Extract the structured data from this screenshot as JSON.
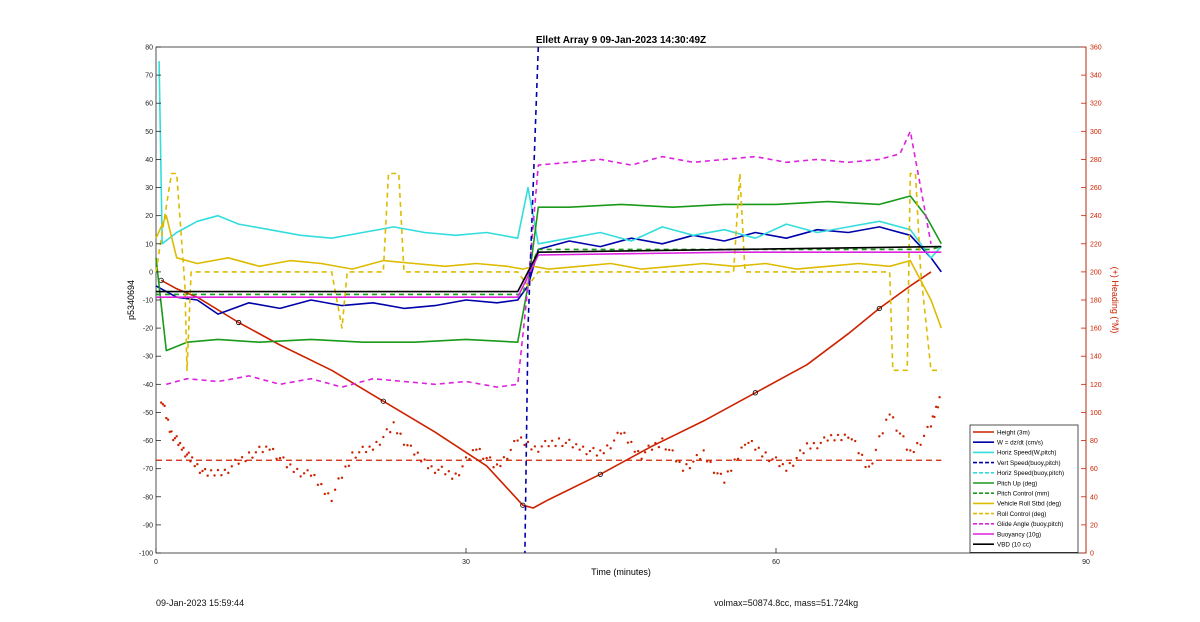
{
  "chart_data": {
    "type": "line",
    "title": "Ellett Array 9 09-Jan-2023 14:30:49Z",
    "xlabel": "Time (minutes)",
    "ylabel": "p5340694",
    "y2label": "(+) Heading (°M)",
    "xlim": [
      0,
      90
    ],
    "ylim": [
      -100,
      80
    ],
    "y2lim": [
      0,
      360
    ],
    "xticks": [
      0,
      30,
      60,
      90
    ],
    "yticks": [
      80,
      70,
      60,
      50,
      40,
      30,
      20,
      10,
      0,
      -10,
      -20,
      -30,
      -40,
      -50,
      -60,
      -70,
      -80,
      -90,
      -100
    ],
    "y2ticks": [
      360,
      340,
      320,
      300,
      280,
      260,
      240,
      220,
      200,
      180,
      160,
      140,
      120,
      100,
      80,
      60,
      40,
      20,
      0
    ],
    "grid": false,
    "legend_position": "bottom-right",
    "legend": [
      {
        "label": "Height (3m)",
        "color": "#cc2200",
        "style": "solid"
      },
      {
        "label": "W = dz/dt (cm/s)",
        "color": "#0000aa",
        "style": "solid"
      },
      {
        "label": "Horiz Speed(W,pitch)",
        "color": "#33dddd",
        "style": "solid"
      },
      {
        "label": "Vert Speed(buoy,pitch)",
        "color": "#0000aa",
        "style": "dashed"
      },
      {
        "label": "Horiz Speed(buoy,pitch)",
        "color": "#33dddd",
        "style": "dashed"
      },
      {
        "label": "Pitch Up (deg)",
        "color": "#1a9a1a",
        "style": "solid"
      },
      {
        "label": "Pitch Control (mm)",
        "color": "#1a9a1a",
        "style": "dashed"
      },
      {
        "label": "Vehicle Roll Stbd (deg)",
        "color": "#ddbb00",
        "style": "solid"
      },
      {
        "label": "Roll Control (deg)",
        "color": "#ddbb00",
        "style": "dashed"
      },
      {
        "label": "Glide Angle (buoy,pitch)",
        "color": "#dd22dd",
        "style": "dashed"
      },
      {
        "label": "Buoyancy (10g)",
        "color": "#dd22dd",
        "style": "solid"
      },
      {
        "label": "VBD (10 cc)",
        "color": "#000000",
        "style": "solid"
      }
    ],
    "series": [
      {
        "name": "Height (3m)",
        "color": "#cc2200",
        "x": [
          0.5,
          2,
          4,
          8,
          12,
          17,
          22,
          27,
          32,
          35.5,
          36.5,
          38,
          43,
          48,
          53,
          58,
          63,
          67,
          70,
          73,
          75
        ],
        "y": [
          -3,
          -6,
          -9,
          -18,
          -26,
          -35,
          -46,
          -57,
          -69,
          -83,
          -84,
          -81,
          -72,
          -62,
          -53,
          -43,
          -33,
          -22,
          -13,
          -5,
          0
        ]
      },
      {
        "name": "W = dz/dt (cm/s)",
        "color": "#0000aa",
        "x": [
          0,
          2,
          4,
          6,
          9,
          12,
          15,
          18,
          21,
          24,
          27,
          30,
          33,
          35,
          36,
          37,
          40,
          43,
          46,
          49,
          52,
          55,
          58,
          61,
          64,
          67,
          70,
          73,
          75,
          76
        ],
        "y": [
          -5,
          -9,
          -10,
          -15,
          -11,
          -13,
          -10,
          -12,
          -11,
          -13,
          -12,
          -10,
          -11,
          -10,
          -5,
          8,
          11,
          9,
          12,
          10,
          13,
          11,
          14,
          12,
          15,
          14,
          16,
          13,
          5,
          0
        ]
      },
      {
        "name": "Horiz Speed(W,pitch)",
        "color": "#33dddd",
        "x": [
          0.3,
          0.6,
          2,
          4,
          6,
          8,
          11,
          14,
          17,
          20,
          23,
          26,
          29,
          32,
          35,
          36,
          37,
          40,
          43,
          46,
          49,
          52,
          55,
          58,
          61,
          64,
          67,
          70,
          73,
          75,
          76
        ],
        "y": [
          75,
          10,
          14,
          18,
          20,
          17,
          15,
          13,
          12,
          14,
          16,
          14,
          13,
          14,
          12,
          30,
          10,
          12,
          14,
          11,
          16,
          13,
          15,
          12,
          17,
          14,
          16,
          18,
          15,
          5,
          9
        ]
      },
      {
        "name": "Pitch Up (deg)",
        "color": "#1a9a1a",
        "x": [
          0,
          1,
          3,
          6,
          10,
          15,
          20,
          25,
          30,
          35,
          36,
          37,
          40,
          45,
          50,
          55,
          60,
          65,
          70,
          73,
          74.5,
          76
        ],
        "y": [
          5,
          -28,
          -25,
          -24,
          -25,
          -24,
          -25,
          -25,
          -24,
          -25,
          -5,
          23,
          23,
          24,
          23,
          24,
          24,
          25,
          24,
          27,
          20,
          10
        ]
      },
      {
        "name": "Pitch Control (mm)",
        "color": "#1a9a1a",
        "x": [
          0,
          35.5,
          36,
          37,
          56,
          56.1,
          75,
          76
        ],
        "y": [
          -8,
          -8,
          0,
          8,
          8,
          8,
          8,
          9
        ]
      },
      {
        "name": "Vehicle Roll Stbd (deg)",
        "color": "#ddbb00",
        "x": [
          0,
          1,
          2,
          4,
          7,
          10,
          13,
          16,
          19,
          22,
          25,
          28,
          31,
          34,
          35.5,
          36.5,
          38,
          41,
          44,
          47,
          50,
          53,
          56,
          59,
          62,
          65,
          68,
          71,
          73,
          75,
          76
        ],
        "y": [
          12,
          20,
          5,
          3,
          5,
          2,
          4,
          3,
          1,
          4,
          3,
          2,
          3,
          2,
          1,
          2,
          1,
          2,
          3,
          1,
          2,
          3,
          2,
          3,
          1,
          2,
          3,
          2,
          4,
          -10,
          -20
        ]
      },
      {
        "name": "Roll Control (deg)",
        "color": "#ddbb00",
        "x": [
          0,
          1.5,
          2,
          2.8,
          3,
          3.4,
          4,
          17,
          18,
          18.5,
          22,
          22.5,
          23.5,
          24,
          35,
          36,
          37,
          55.9,
          56.5,
          57,
          71,
          71.3,
          72.7,
          73,
          73.5,
          74,
          75,
          76
        ],
        "y": [
          0,
          35,
          35,
          -5,
          -35,
          0,
          0,
          0,
          -20,
          0,
          0,
          35,
          35,
          0,
          0,
          -5,
          0,
          0,
          35,
          0,
          0,
          -35,
          -35,
          35,
          35,
          0,
          -35,
          -35
        ]
      },
      {
        "name": "Glide Angle (buoy,pitch)",
        "color": "#dd22dd",
        "x": [
          1,
          3,
          6,
          9,
          12,
          15,
          18,
          21,
          24,
          27,
          30,
          33,
          35,
          36,
          37,
          40,
          43,
          46,
          49,
          52,
          55,
          58,
          61,
          64,
          67,
          70,
          72,
          73,
          74,
          75
        ],
        "y": [
          -40,
          -38,
          -39,
          -37,
          -40,
          -38,
          -41,
          -38,
          -39,
          -40,
          -39,
          -41,
          -40,
          -5,
          38,
          39,
          40,
          38,
          41,
          39,
          40,
          41,
          39,
          40,
          39,
          40,
          42,
          50,
          30,
          10
        ]
      },
      {
        "name": "Buoyancy (10g)",
        "color": "#dd22dd",
        "x": [
          0,
          35,
          37,
          56,
          76
        ],
        "y": [
          -9,
          -9,
          6,
          7,
          7
        ]
      },
      {
        "name": "VBD (10 cc)",
        "color": "#000000",
        "x": [
          0,
          35,
          37,
          56,
          76
        ],
        "y": [
          -7,
          -7,
          7,
          8,
          9
        ]
      },
      {
        "name": "Vert Speed(buoy,pitch)",
        "color": "#0000aa",
        "x": [
          37,
          36,
          35.7
        ],
        "y": [
          80,
          -20,
          -100
        ]
      }
    ],
    "heading_series": {
      "color": "#cc2200",
      "axis": "right",
      "x": [
        0.5,
        1.5,
        2.5,
        3.5,
        5,
        7,
        9,
        11,
        13,
        15,
        17,
        19,
        21,
        23,
        25,
        27,
        29,
        31,
        33,
        35,
        37,
        39,
        41,
        43,
        45,
        47,
        49,
        51,
        53,
        55,
        57,
        59,
        61,
        63,
        65,
        67,
        69,
        71,
        73,
        75,
        76
      ],
      "y": [
        110,
        85,
        75,
        65,
        55,
        60,
        70,
        75,
        60,
        55,
        40,
        70,
        75,
        90,
        70,
        60,
        55,
        75,
        60,
        80,
        75,
        80,
        75,
        70,
        85,
        70,
        80,
        60,
        70,
        50,
        80,
        70,
        60,
        75,
        80,
        85,
        60,
        100,
        70,
        90,
        115
      ]
    },
    "heading_mean": {
      "color": "#cc2200",
      "axis": "right",
      "value": 66,
      "x": [
        0,
        76
      ]
    },
    "annotations": {
      "footer_left": "09-Jan-2023 15:59:44",
      "footer_right": "volmax=50874.8cc, mass=51.724kg"
    }
  }
}
